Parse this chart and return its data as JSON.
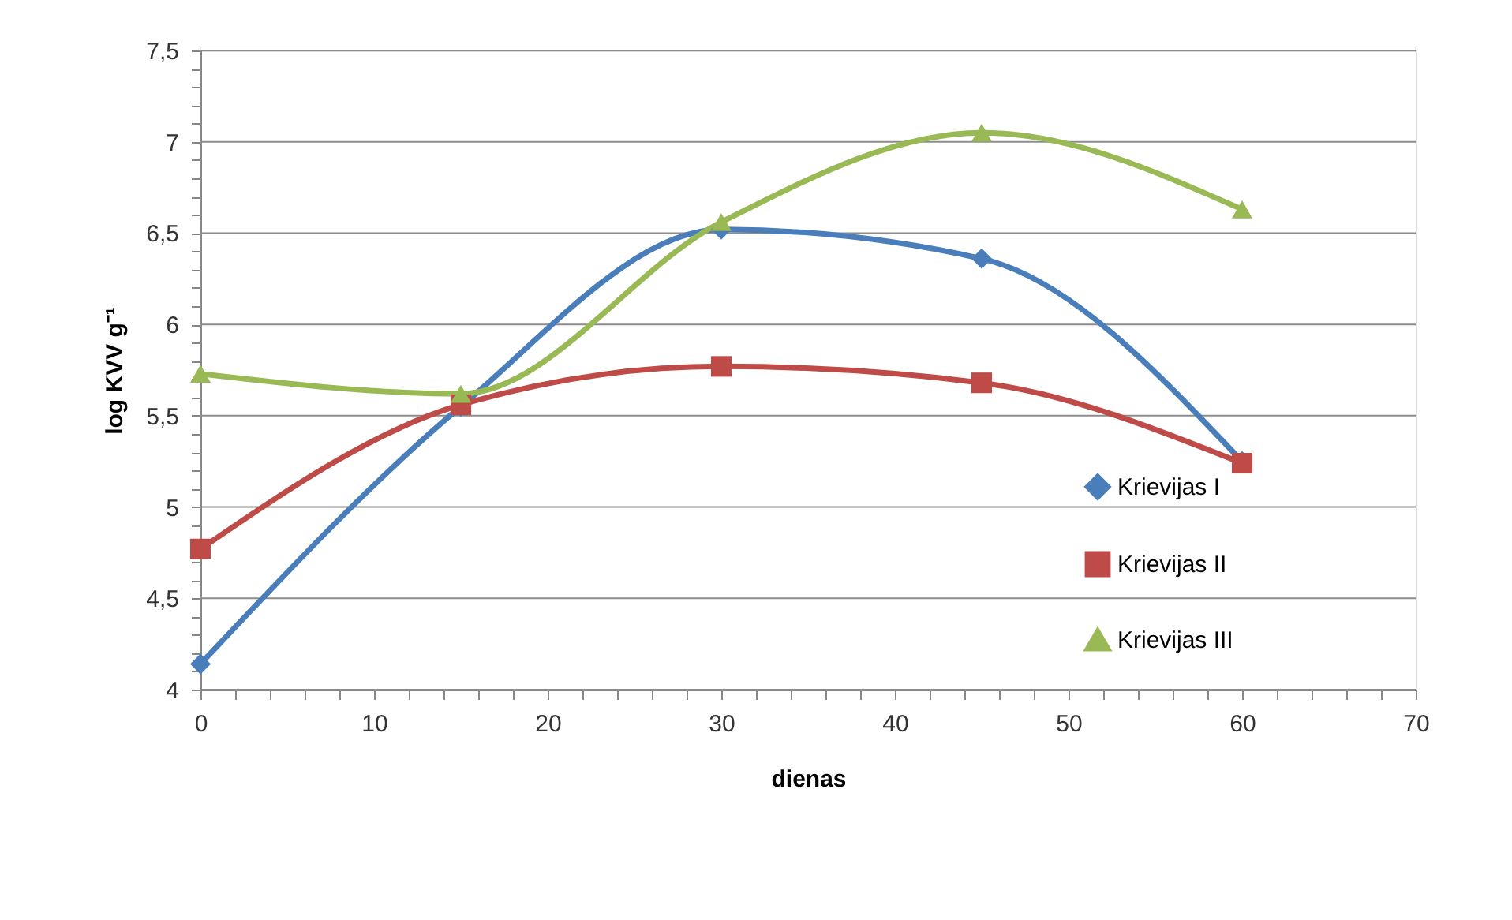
{
  "chart_data": {
    "type": "line",
    "xlabel": "dienas",
    "ylabel": "log KVV g⁻¹",
    "x": [
      0,
      15,
      30,
      45,
      60
    ],
    "series": [
      {
        "name": "Krievijas I",
        "color": "#4a7ebb",
        "marker": "diamond",
        "values": [
          4.14,
          5.55,
          6.52,
          6.36,
          5.25
        ]
      },
      {
        "name": "Krievijas II",
        "color": "#be4b48",
        "marker": "square",
        "values": [
          4.77,
          5.56,
          5.77,
          5.68,
          5.24
        ]
      },
      {
        "name": "Krievijas III",
        "color": "#98b954",
        "marker": "triangle",
        "values": [
          5.73,
          5.62,
          6.56,
          7.05,
          6.63
        ]
      }
    ],
    "xlim": [
      0,
      70
    ],
    "xticks": [
      0,
      {
        "value": 2,
        "label": null
      },
      {
        "value": 4,
        "label": null
      },
      {
        "value": 6,
        "label": null
      },
      {
        "value": 8,
        "label": null
      },
      10,
      {
        "value": 12,
        "label": null
      },
      {
        "value": 14,
        "label": null
      },
      {
        "value": 16,
        "label": null
      },
      {
        "value": 18,
        "label": null
      },
      20,
      {
        "value": 22,
        "label": null
      },
      {
        "value": 24,
        "label": null
      },
      {
        "value": 26,
        "label": null
      },
      {
        "value": 28,
        "label": null
      },
      30,
      {
        "value": 32,
        "label": null
      },
      {
        "value": 34,
        "label": null
      },
      {
        "value": 36,
        "label": null
      },
      {
        "value": 38,
        "label": null
      },
      40,
      {
        "value": 42,
        "label": null
      },
      {
        "value": 44,
        "label": null
      },
      {
        "value": 46,
        "label": null
      },
      {
        "value": 48,
        "label": null
      },
      50,
      {
        "value": 52,
        "label": null
      },
      {
        "value": 54,
        "label": null
      },
      {
        "value": 56,
        "label": null
      },
      {
        "value": 58,
        "label": null
      },
      60,
      {
        "value": 62,
        "label": null
      },
      {
        "value": 64,
        "label": null
      },
      {
        "value": 66,
        "label": null
      },
      {
        "value": 68,
        "label": null
      },
      70
    ],
    "ylim": [
      4,
      7.5
    ],
    "yticks": [
      {
        "value": 4,
        "label": "4"
      },
      {
        "value": 4.1,
        "label": null
      },
      {
        "value": 4.2,
        "label": null
      },
      {
        "value": 4.3,
        "label": null
      },
      {
        "value": 4.4,
        "label": null
      },
      {
        "value": 4.5,
        "label": "4,5"
      },
      {
        "value": 4.6,
        "label": null
      },
      {
        "value": 4.7,
        "label": null
      },
      {
        "value": 4.8,
        "label": null
      },
      {
        "value": 4.9,
        "label": null
      },
      {
        "value": 5,
        "label": "5"
      },
      {
        "value": 5.1,
        "label": null
      },
      {
        "value": 5.2,
        "label": null
      },
      {
        "value": 5.3,
        "label": null
      },
      {
        "value": 5.4,
        "label": null
      },
      {
        "value": 5.5,
        "label": "5,5"
      },
      {
        "value": 5.6,
        "label": null
      },
      {
        "value": 5.7,
        "label": null
      },
      {
        "value": 5.8,
        "label": null
      },
      {
        "value": 5.9,
        "label": null
      },
      {
        "value": 6,
        "label": "6"
      },
      {
        "value": 6.1,
        "label": null
      },
      {
        "value": 6.2,
        "label": null
      },
      {
        "value": 6.3,
        "label": null
      },
      {
        "value": 6.4,
        "label": null
      },
      {
        "value": 6.5,
        "label": "6,5"
      },
      {
        "value": 6.6,
        "label": null
      },
      {
        "value": 6.7,
        "label": null
      },
      {
        "value": 6.8,
        "label": null
      },
      {
        "value": 6.9,
        "label": null
      },
      {
        "value": 7,
        "label": "7"
      },
      {
        "value": 7.1,
        "label": null
      },
      {
        "value": 7.2,
        "label": null
      },
      {
        "value": 7.3,
        "label": null
      },
      {
        "value": 7.4,
        "label": null
      },
      {
        "value": 7.5,
        "label": "7,5"
      }
    ],
    "grid": "y",
    "legend": "right",
    "line_style": "solid"
  }
}
